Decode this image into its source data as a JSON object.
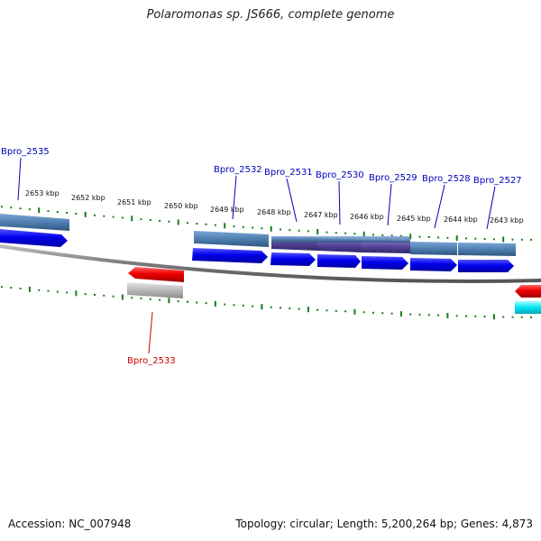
{
  "header": {
    "title": "Polaromonas sp. JS666, complete genome"
  },
  "footer": {
    "accession": "Accession: NC_007948",
    "summary": "Topology: circular; Length: 5,200,264 bp; Genes: 4,873"
  },
  "scale": {
    "unit": "kbp",
    "labels": [
      "2653 kbp",
      "2652 kbp",
      "2651 kbp",
      "2650 kbp",
      "2649 kbp",
      "2648 kbp",
      "2647 kbp",
      "2646 kbp",
      "2645 kbp",
      "2644 kbp",
      "2643 kbp"
    ]
  },
  "genes": [
    {
      "label": "Bpro_2535",
      "strand": "forward",
      "color": "#0000cc"
    },
    {
      "label": "Bpro_2532",
      "strand": "forward",
      "color": "#0000cc"
    },
    {
      "label": "Bpro_2531",
      "strand": "forward",
      "color": "#0000cc"
    },
    {
      "label": "Bpro_2530",
      "strand": "forward",
      "color": "#0000cc"
    },
    {
      "label": "Bpro_2529",
      "strand": "forward",
      "color": "#0000cc"
    },
    {
      "label": "Bpro_2528",
      "strand": "forward",
      "color": "#0000cc"
    },
    {
      "label": "Bpro_2527",
      "strand": "forward",
      "color": "#0000cc"
    },
    {
      "label": "Bpro_2533",
      "strand": "reverse",
      "color": "#cc0000"
    }
  ],
  "colors": {
    "forward_gene": "#0000ee",
    "reverse_gene": "#ee0000",
    "forward_label": "#0000bb",
    "reverse_label": "#cc0000",
    "tick": "#1a7a1a",
    "backbone": "#808080",
    "feature_blue": "#4f7fb0",
    "feature_purple": "#554499",
    "feature_gray": "#b8b8b8",
    "feature_cyan": "#00e5f5"
  }
}
